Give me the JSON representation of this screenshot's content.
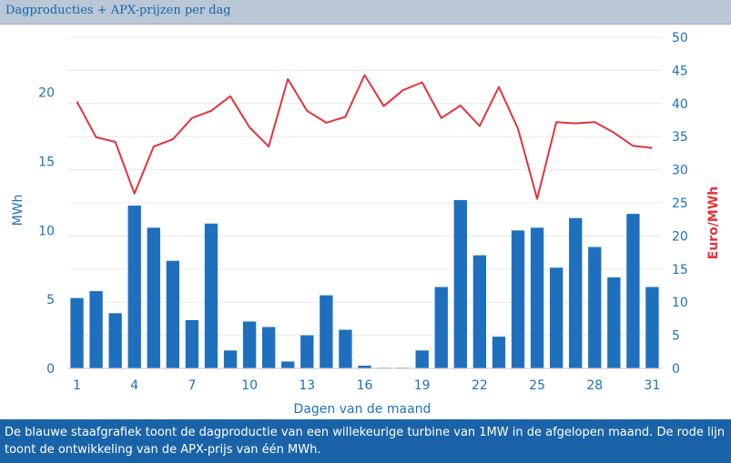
{
  "title": "Dagproducties + APX-prijzen per dag",
  "caption": "De blauwe staafgrafiek toont de dagproductie van een willekeurige turbine van 1MW in de afgelopen maand. De rode lijn toont de ontwikkeling van de APX-prijs van één MWh.",
  "colors": {
    "bar": "#1f6fbf",
    "line": "#e3343c",
    "left_axis": "#1f6fbf",
    "right_axis": "#e3343c",
    "grid": "#e9e9e9"
  },
  "chart_data": {
    "type": "bar",
    "xlabel": "Dagen van de maand",
    "ylabel": "MWh",
    "y2label": "Euro/MWh",
    "ylim": [
      0,
      24
    ],
    "y2lim": [
      0,
      50
    ],
    "grid": true,
    "xticks": [
      1,
      4,
      7,
      10,
      13,
      16,
      19,
      22,
      25,
      28,
      31
    ],
    "yticks": [
      0,
      5,
      10,
      15,
      20
    ],
    "y2ticks": [
      0,
      5,
      10,
      15,
      20,
      25,
      30,
      35,
      40,
      45,
      50
    ],
    "x": [
      1,
      2,
      3,
      4,
      5,
      6,
      7,
      8,
      9,
      10,
      11,
      12,
      13,
      14,
      15,
      16,
      17,
      18,
      19,
      20,
      21,
      22,
      23,
      24,
      25,
      26,
      27,
      28,
      29,
      30,
      31
    ],
    "series": [
      {
        "type": "bar",
        "axis": "left",
        "values": [
          5.1,
          5.6,
          4.0,
          11.8,
          10.2,
          7.8,
          3.5,
          10.5,
          1.3,
          3.4,
          3.0,
          0.5,
          2.4,
          5.3,
          2.8,
          0.2,
          0.05,
          0.05,
          1.3,
          5.9,
          12.2,
          8.2,
          2.3,
          10.0,
          10.2,
          7.3,
          10.9,
          8.8,
          6.6,
          11.2,
          5.9
        ]
      },
      {
        "type": "line",
        "axis": "right",
        "values": [
          40.3,
          34.9,
          34.2,
          26.4,
          33.5,
          34.6,
          37.8,
          38.9,
          41.1,
          36.4,
          33.5,
          43.7,
          38.9,
          37.1,
          38.0,
          44.3,
          39.6,
          42.0,
          43.2,
          37.8,
          39.7,
          36.6,
          42.5,
          36.2,
          25.6,
          37.2,
          37.0,
          37.2,
          35.6,
          33.6,
          33.3
        ]
      }
    ]
  }
}
